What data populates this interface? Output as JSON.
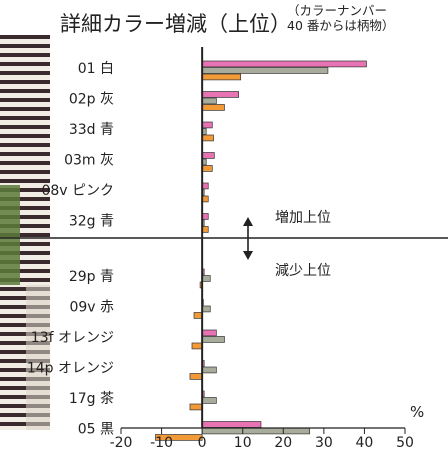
{
  "header": {
    "title": "詳細カラー増減（上位）",
    "note_line1": "（カラーナンバー",
    "note_line2": "40 番からは柄物）"
  },
  "chart_data": {
    "type": "bar",
    "orientation": "horizontal",
    "groups": [
      {
        "name": "増加上位",
        "categories": [
          "01 白",
          "02p 灰",
          "33d 青",
          "03m 灰",
          "08v ピンク",
          "32g 青"
        ],
        "series": [
          {
            "color": "#e773b3",
            "values": [
              40.5,
              9.0,
              2.5,
              3.0,
              1.5,
              1.5
            ]
          },
          {
            "color": "#a8ad9b",
            "values": [
              31.0,
              3.5,
              1.0,
              1.0,
              0.5,
              0.5
            ]
          },
          {
            "color": "#f39a38",
            "values": [
              9.5,
              5.5,
              2.8,
              2.5,
              1.5,
              1.5
            ]
          }
        ]
      },
      {
        "name": "減少上位",
        "categories": [
          "29p 青",
          "09v 赤",
          "13f オレンジ",
          "14p オレンジ",
          "17g 茶",
          "05 黒"
        ],
        "series": [
          {
            "color": "#e773b3",
            "values": [
              0.5,
              0.3,
              3.5,
              0.5,
              0.5,
              14.5
            ]
          },
          {
            "color": "#a8ad9b",
            "values": [
              2.0,
              2.0,
              5.5,
              3.5,
              3.5,
              26.5
            ]
          },
          {
            "color": "#f39a38",
            "values": [
              -0.5,
              -2.0,
              -2.5,
              -3.0,
              -3.0,
              -11.5
            ]
          }
        ]
      }
    ],
    "xlim": [
      -20,
      50
    ],
    "xticks": [
      -20,
      -10,
      0,
      10,
      20,
      30,
      40,
      50
    ],
    "unit": "%",
    "annotation_up": "増加上位",
    "annotation_down": "減少上位",
    "colors": {
      "pink": "#e773b3",
      "gray": "#a8ad9b",
      "orange": "#f39a38",
      "axis": "#222222"
    }
  }
}
